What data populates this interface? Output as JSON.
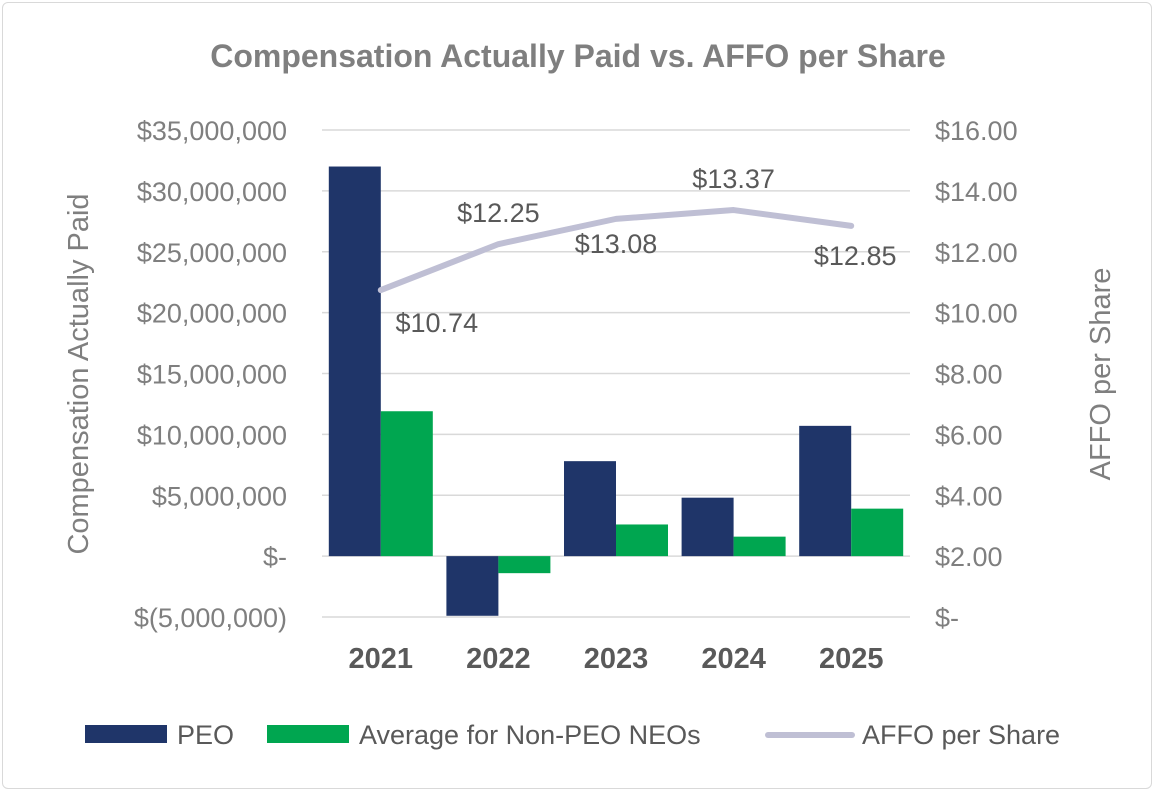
{
  "chart_data": {
    "type": "bar",
    "title": "Compensation Actually Paid vs. AFFO per Share",
    "categories": [
      "2021",
      "2022",
      "2023",
      "2024",
      "2025"
    ],
    "ylabel": "Compensation Actually Paid",
    "y2label": "AFFO per Share",
    "ylim": [
      -5000000,
      35000000
    ],
    "y2lim": [
      0,
      16
    ],
    "yticks": [
      {
        "value": 35000000,
        "label": "$35,000,000"
      },
      {
        "value": 30000000,
        "label": "$30,000,000"
      },
      {
        "value": 25000000,
        "label": "$25,000,000"
      },
      {
        "value": 20000000,
        "label": "$20,000,000"
      },
      {
        "value": 15000000,
        "label": "$15,000,000"
      },
      {
        "value": 10000000,
        "label": "$10,000,000"
      },
      {
        "value": 5000000,
        "label": "$5,000,000"
      },
      {
        "value": 0,
        "label": "$-"
      },
      {
        "value": -5000000,
        "label": "$(5,000,000)"
      }
    ],
    "y2ticks": [
      {
        "value": 16,
        "label": "$16.00"
      },
      {
        "value": 14,
        "label": "$14.00"
      },
      {
        "value": 12,
        "label": "$12.00"
      },
      {
        "value": 10,
        "label": "$10.00"
      },
      {
        "value": 8,
        "label": "$8.00"
      },
      {
        "value": 6,
        "label": "$6.00"
      },
      {
        "value": 4,
        "label": "$4.00"
      },
      {
        "value": 2,
        "label": "$2.00"
      },
      {
        "value": 0,
        "label": "$-"
      }
    ],
    "series": [
      {
        "name": "PEO",
        "kind": "bar",
        "axis": "left",
        "color": "#1f3569",
        "values": [
          32000000,
          -4900000,
          7800000,
          4800000,
          10700000
        ]
      },
      {
        "name": "Average for Non-PEO NEOs",
        "kind": "bar",
        "axis": "left",
        "color": "#00a650",
        "values": [
          11900000,
          -1400000,
          2600000,
          1600000,
          3900000
        ]
      },
      {
        "name": "AFFO per Share",
        "kind": "line",
        "axis": "right",
        "color": "#bfbfd4",
        "values": [
          10.74,
          12.25,
          13.08,
          13.37,
          12.85
        ],
        "labels": [
          "$10.74",
          "$12.25",
          "$13.08",
          "$13.37",
          "$12.85"
        ]
      }
    ],
    "grid": true,
    "legend": "bottom"
  }
}
